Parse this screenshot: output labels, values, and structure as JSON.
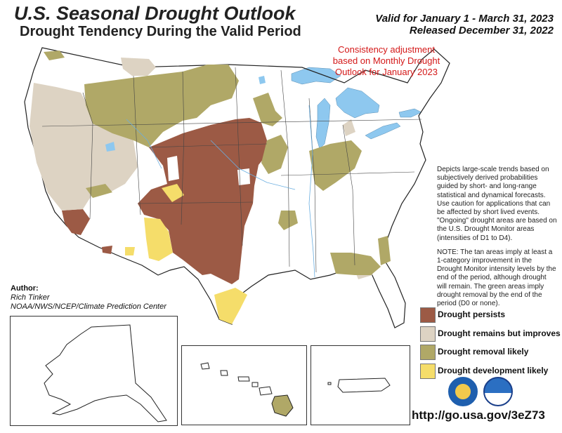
{
  "header": {
    "title": "U.S. Seasonal Drought Outlook",
    "subtitle": "Drought Tendency During the Valid Period",
    "valid_line": "Valid for January 1 - March 31, 2023",
    "released_line": "Released December 31, 2022"
  },
  "consistency_note": "Consistency adjustment based on Monthly Drought Outlook for January 2023",
  "description": {
    "paragraph1": "Depicts large-scale trends based on subjectively derived probabilities guided by short- and long-range statistical and dynamical forecasts. Use caution for applications that can be affected by short lived events. \"Ongoing\" drought areas are based on the U.S. Drought Monitor areas (intensities of D1 to D4).",
    "paragraph2": "NOTE: The tan areas imply at least a 1-category improvement in the Drought Monitor intensity levels by the end of the period, although drought will remain. The green areas imply drought removal by the end of the period (D0 or none)."
  },
  "author": {
    "heading": "Author:",
    "name": "Rich Tinker",
    "org": "NOAA/NWS/NCEP/Climate Prediction Center"
  },
  "legend": [
    {
      "label": "Drought persists",
      "color": "#9c5a45"
    },
    {
      "label": "Drought remains but improves",
      "color": "#ddd3c3"
    },
    {
      "label": "Drought removal likely",
      "color": "#b0a867"
    },
    {
      "label": "Drought development likely",
      "color": "#f5dd6a"
    }
  ],
  "url": "http://go.usa.gov/3eZ73",
  "colors": {
    "water": "#8ec8ef",
    "outline": "#222222",
    "red_note": "#d41818"
  },
  "logos": [
    "nws-logo",
    "noaa-logo"
  ]
}
